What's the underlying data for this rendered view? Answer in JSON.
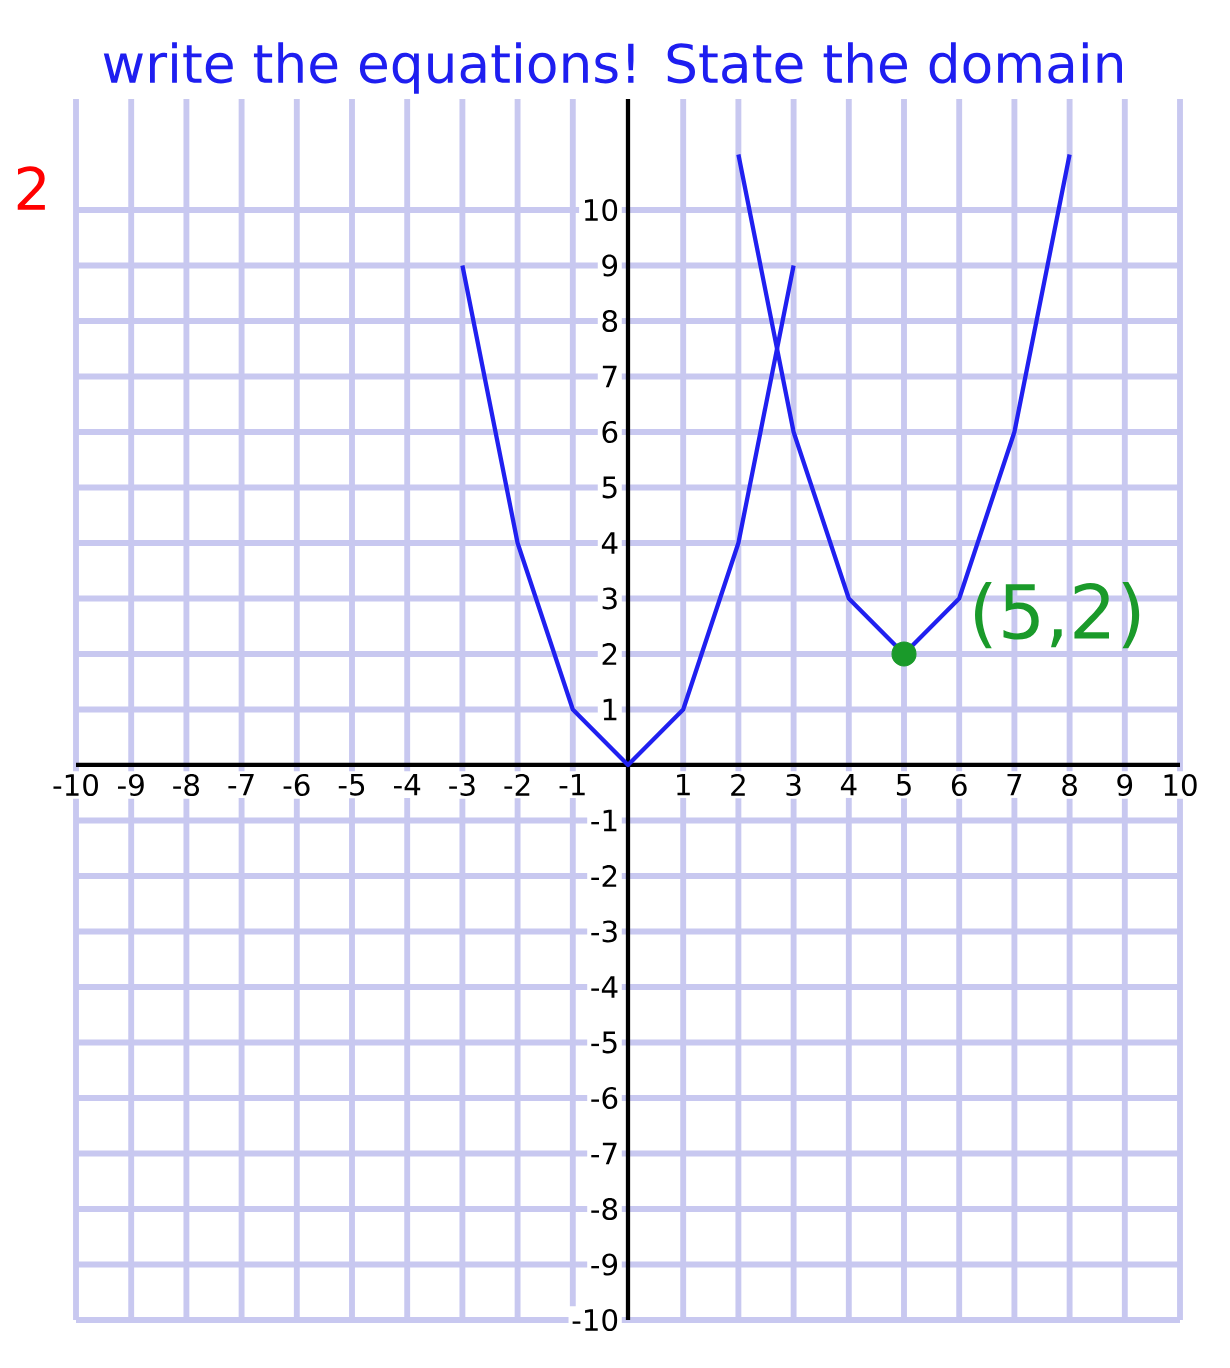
{
  "chart_data": {
    "type": "line",
    "title": "write the equations! State the domain",
    "annotations": [
      "2",
      {
        "text": "(5,2)",
        "x": 5,
        "y": 2
      }
    ],
    "xlim": [
      -10,
      10
    ],
    "ylim": [
      -10,
      12
    ],
    "xticks": [
      -10,
      -9,
      -8,
      -7,
      -6,
      -5,
      -4,
      -3,
      -2,
      -1,
      {
        "value": 0,
        "label": null
      },
      1,
      2,
      3,
      4,
      5,
      6,
      7,
      8,
      9,
      10
    ],
    "yticks": [
      -10,
      -9,
      -8,
      -7,
      -6,
      -5,
      -4,
      -3,
      -2,
      -1,
      {
        "value": 0,
        "label": null
      },
      1,
      2,
      3,
      4,
      5,
      6,
      7,
      8,
      9,
      10
    ],
    "grid": true,
    "line_style": "solid",
    "series": [
      {
        "color": "#2020f0",
        "x": [
          -3,
          -2,
          -1,
          0,
          1,
          2,
          3
        ],
        "values": [
          9,
          4,
          1,
          0,
          1,
          4,
          9
        ]
      },
      {
        "color": "#2020f0",
        "x": [
          2,
          3,
          4,
          5,
          6,
          7,
          8
        ],
        "values": [
          11,
          6,
          3,
          2,
          3,
          6,
          11
        ]
      },
      {
        "type": "scatter",
        "color": "#1a9a2a",
        "x": [
          5
        ],
        "values": [
          2
        ]
      }
    ]
  }
}
